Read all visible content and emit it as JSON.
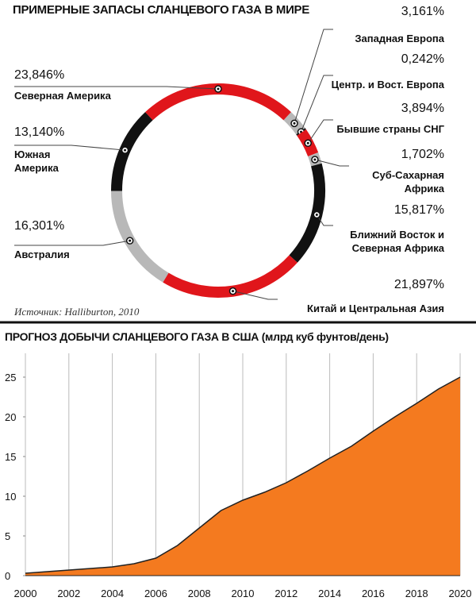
{
  "chart_data": [
    {
      "type": "donut",
      "title": "ПРИМЕРНЫЕ ЗАПАСЫ СЛАНЦЕВОГО ГАЗА В МИРЕ",
      "categories": [
        "Западная Европа",
        "Центр. и Вост. Европа",
        "Бывшие страны СНГ",
        "Суб-Сахарная Африка",
        "Ближний Восток и Северная Африка",
        "Китай и Центральная Азия",
        "Австралия",
        "Южная Америка",
        "Северная Америка"
      ],
      "values": [
        3.161,
        0.242,
        3.894,
        1.702,
        15.817,
        21.897,
        16.301,
        13.14,
        23.846
      ],
      "value_labels": [
        "3,161%",
        "0,242%",
        "3,894%",
        "1,702%",
        "15,817%",
        "21,897%",
        "16,301%",
        "13,140%",
        "23,846%"
      ],
      "colors": [
        "#b8b8b8",
        "#111111",
        "#e0161b",
        "#b8b8b8",
        "#111111",
        "#e0161b",
        "#b8b8b8",
        "#111111",
        "#e0161b"
      ],
      "source": "Источник: Halliburton, 2010"
    },
    {
      "type": "area",
      "title": "ПРОГНОЗ ДОБЫЧИ СЛАНЦЕВОГО ГАЗА В США (млрд куб фунтов/день)",
      "x": [
        2000,
        2001,
        2002,
        2003,
        2004,
        2005,
        2006,
        2007,
        2008,
        2009,
        2010,
        2011,
        2012,
        2013,
        2014,
        2015,
        2016,
        2017,
        2018,
        2019,
        2020
      ],
      "values": [
        0.3,
        0.5,
        0.7,
        0.9,
        1.1,
        1.5,
        2.2,
        3.8,
        6,
        8.2,
        9.5,
        10.5,
        11.7,
        13.2,
        14.8,
        16.3,
        18.2,
        20,
        21.7,
        23.5,
        25
      ],
      "color": "#f47a1f",
      "xlim": [
        2000,
        2020
      ],
      "xticks": [
        2000,
        2002,
        2004,
        2006,
        2008,
        2010,
        2012,
        2014,
        2016,
        2018,
        2020
      ],
      "ylim": [
        0,
        27
      ],
      "yticks": [
        0,
        5,
        10,
        15,
        20,
        25
      ],
      "grid": true
    }
  ]
}
